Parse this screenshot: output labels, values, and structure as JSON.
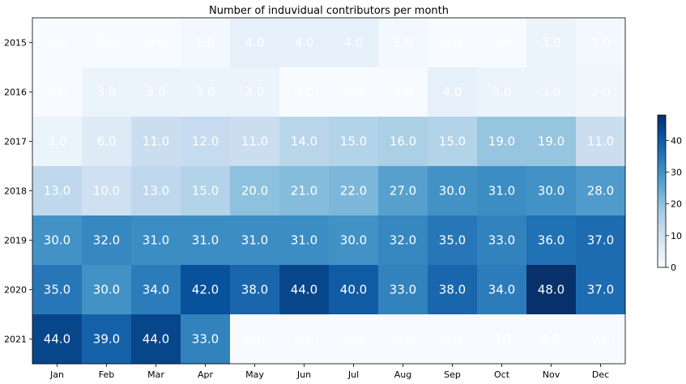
{
  "chart_data": {
    "type": "heatmap",
    "title": "Number of induvidual contributors per month",
    "x_categories": [
      "Jan",
      "Feb",
      "Mar",
      "Apr",
      "May",
      "Jun",
      "Jul",
      "Aug",
      "Sep",
      "Oct",
      "Nov",
      "Dec"
    ],
    "y_categories": [
      "2015",
      "2016",
      "2017",
      "2018",
      "2019",
      "2020",
      "2021"
    ],
    "values": [
      [
        0,
        0,
        0,
        1,
        4,
        4,
        4,
        1,
        0,
        0,
        3,
        1
      ],
      [
        0,
        3,
        3,
        3,
        3,
        0,
        0,
        0,
        4,
        3,
        3,
        2
      ],
      [
        3,
        6,
        11,
        12,
        11,
        14,
        15,
        16,
        15,
        19,
        19,
        11
      ],
      [
        13,
        10,
        13,
        15,
        20,
        21,
        22,
        27,
        30,
        31,
        30,
        28
      ],
      [
        30,
        32,
        31,
        31,
        31,
        31,
        30,
        32,
        35,
        33,
        36,
        37
      ],
      [
        35,
        30,
        34,
        42,
        38,
        44,
        40,
        33,
        38,
        34,
        48,
        37
      ],
      [
        44,
        39,
        44,
        33,
        0,
        0,
        0,
        0,
        0,
        0,
        0,
        0
      ]
    ],
    "cell_labels": [
      [
        "0.0",
        "0.0",
        "0.0",
        "1.0",
        "4.0",
        "4.0",
        "4.0",
        "1.0",
        "0.0",
        "0.0",
        "3.0",
        "1.0"
      ],
      [
        "0.0",
        "3.0",
        "3.0",
        "3.0",
        "3.0",
        "0.0",
        "0.0",
        "0.0",
        "4.0",
        "3.0",
        "3.0",
        "2.0"
      ],
      [
        "3.0",
        "6.0",
        "11.0",
        "12.0",
        "11.0",
        "14.0",
        "15.0",
        "16.0",
        "15.0",
        "19.0",
        "19.0",
        "11.0"
      ],
      [
        "13.0",
        "10.0",
        "13.0",
        "15.0",
        "20.0",
        "21.0",
        "22.0",
        "27.0",
        "30.0",
        "31.0",
        "30.0",
        "28.0"
      ],
      [
        "30.0",
        "32.0",
        "31.0",
        "31.0",
        "31.0",
        "31.0",
        "30.0",
        "32.0",
        "35.0",
        "33.0",
        "36.0",
        "37.0"
      ],
      [
        "35.0",
        "30.0",
        "34.0",
        "42.0",
        "38.0",
        "44.0",
        "40.0",
        "33.0",
        "38.0",
        "34.0",
        "48.0",
        "37.0"
      ],
      [
        "44.0",
        "39.0",
        "44.0",
        "33.0",
        "0.0",
        "0.0",
        "0.0",
        "0.0",
        "0.0",
        "0.0",
        "0.0",
        "0.0"
      ]
    ],
    "colorbar": {
      "min": 0,
      "max": 48,
      "ticks": [
        "0",
        "10",
        "20",
        "30",
        "40"
      ],
      "tick_values": [
        0,
        10,
        20,
        30,
        40
      ],
      "colormap": "Blues"
    },
    "colors": {
      "cmap_stops": [
        "#f7fbff",
        "#deebf7",
        "#c6dbef",
        "#9ecae1",
        "#6baed6",
        "#4292c6",
        "#2171b5",
        "#08519c",
        "#08306b"
      ],
      "cell_text": "#ffffff"
    },
    "grid": false
  }
}
